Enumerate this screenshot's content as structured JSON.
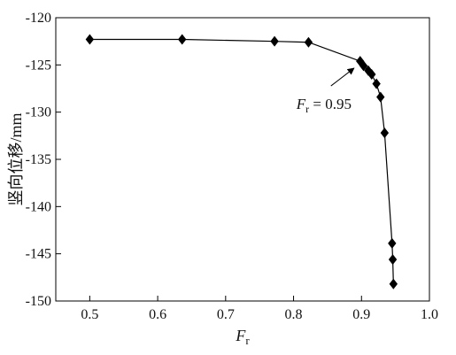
{
  "chart_data": {
    "type": "scatter",
    "title": "",
    "xlabel": {
      "main": "F",
      "sub": "r"
    },
    "ylabel": "竖向位移/mm",
    "xlim": [
      0.45,
      1.0
    ],
    "ylim": [
      -150,
      -120
    ],
    "xticks": [
      0.5,
      0.6,
      0.7,
      0.8,
      0.9,
      1.0
    ],
    "xtick_labels": [
      "0.5",
      "0.6",
      "0.7",
      "0.8",
      "0.9",
      "1.0"
    ],
    "yticks": [
      -120,
      -125,
      -130,
      -135,
      -140,
      -145,
      -150
    ],
    "ytick_labels": [
      "-120",
      "-125",
      "-130",
      "-135",
      "-140",
      "-145",
      "-150"
    ],
    "grid": false,
    "legend": "none",
    "marker": "diamond",
    "line_color": "#000000",
    "marker_color": "#000000",
    "series": [
      {
        "x": [
          0.5,
          0.636,
          0.772,
          0.822,
          0.898,
          0.903,
          0.91,
          0.915,
          0.922,
          0.928,
          0.934,
          0.945,
          0.946,
          0.947
        ],
        "y": [
          -122.3,
          -122.3,
          -122.5,
          -122.6,
          -124.6,
          -125.1,
          -125.6,
          -126.0,
          -127.0,
          -128.4,
          -132.2,
          -143.9,
          -145.6,
          -148.2
        ]
      }
    ],
    "annotations": [
      {
        "label_main": "F",
        "label_sub": "r",
        "label_rest": " = 0.95",
        "target_x": 0.898,
        "target_y": -124.6
      }
    ]
  }
}
